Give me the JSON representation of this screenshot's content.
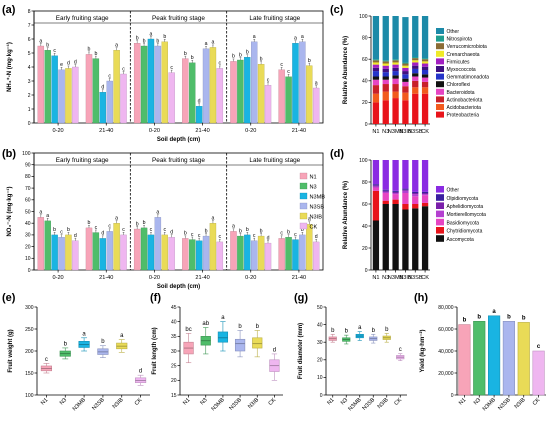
{
  "chart_data": [
    {
      "panel": "(a)",
      "type": "bar",
      "stages": [
        "Early fruiting stage",
        "Peak fruiting stage",
        "Late fruiting stage"
      ],
      "depths": [
        "0-20",
        "21-40"
      ],
      "xlabel": "Soil depth (cm)",
      "ylabel": "NH₄⁺-N (mg·kg⁻¹)",
      "ylim": [
        0,
        8
      ],
      "yticks": [
        "0",
        "1",
        "2",
        "3",
        "4",
        "5",
        "6",
        "7",
        "8"
      ],
      "series_names": [
        "N1",
        "N3",
        "N3MB",
        "N3SB",
        "N3IB",
        "CK"
      ],
      "groups": [
        {
          "values": [
            5.5,
            5.2,
            4.8,
            3.8,
            3.9,
            4.0
          ],
          "letters": [
            "a",
            "b",
            "c",
            "e",
            "d",
            "d"
          ]
        },
        {
          "values": [
            4.9,
            4.6,
            2.2,
            3.0,
            5.2,
            3.5
          ],
          "letters": [
            "b",
            "b",
            "d",
            "c",
            "a",
            "c"
          ]
        },
        {
          "values": [
            5.7,
            5.5,
            6.0,
            5.5,
            5.8,
            3.6
          ],
          "letters": [
            "b",
            "b",
            "a",
            "b",
            "b",
            "c"
          ]
        },
        {
          "values": [
            4.6,
            4.3,
            1.2,
            5.3,
            5.4,
            3.9
          ],
          "letters": [
            "b",
            "b",
            "d",
            "a",
            "a",
            "c"
          ]
        },
        {
          "values": [
            4.4,
            4.5,
            4.7,
            5.8,
            4.2,
            2.7
          ],
          "letters": [
            "b",
            "b",
            "b",
            "a",
            "b",
            "c"
          ]
        },
        {
          "values": [
            3.8,
            3.3,
            5.7,
            5.8,
            4.1,
            2.5
          ],
          "letters": [
            "c",
            "c",
            "a",
            "a",
            "b",
            "a"
          ]
        }
      ]
    },
    {
      "panel": "(b)",
      "type": "bar",
      "stages": [
        "Early fruiting stage",
        "Peak fruiting stage",
        "Late fruiting stage"
      ],
      "depths": [
        "0-20",
        "21-40"
      ],
      "xlabel": "Soil depth (cm)",
      "ylabel": "NO₃⁻-N (mg·kg⁻¹)",
      "ylim": [
        0,
        100
      ],
      "yticks": [
        "0",
        "10",
        "20",
        "30",
        "40",
        "50",
        "60",
        "70",
        "80",
        "90",
        "100"
      ],
      "legend": [
        "N1",
        "N3",
        "N3MB",
        "N3SB",
        "N3IB",
        "CK"
      ],
      "groups": [
        {
          "values": [
            45,
            42,
            30,
            28,
            30,
            25
          ],
          "letters": [
            "a",
            "a",
            "b",
            "c",
            "b",
            "d"
          ]
        },
        {
          "values": [
            36,
            32,
            27,
            33,
            40,
            30
          ],
          "letters": [
            "b",
            "c",
            "d",
            "c",
            "a",
            "c"
          ]
        },
        {
          "values": [
            35,
            36,
            30,
            45,
            30,
            28
          ],
          "letters": [
            "b",
            "b",
            "c",
            "a",
            "c",
            "d"
          ]
        },
        {
          "values": [
            27,
            26,
            25,
            29,
            40,
            24
          ],
          "letters": [
            "b",
            "c",
            "c",
            "b",
            "a",
            "c"
          ]
        },
        {
          "values": [
            33,
            29,
            30,
            25,
            29,
            23
          ],
          "letters": [
            "a",
            "b",
            "b",
            "c",
            "b",
            "d"
          ]
        },
        {
          "values": [
            27,
            28,
            26,
            30,
            39,
            24
          ],
          "letters": [
            "c",
            "b",
            "c",
            "b",
            "a",
            "d"
          ]
        }
      ]
    },
    {
      "panel": "(c)",
      "type": "bar",
      "stacked": true,
      "categories": [
        "N1",
        "N3",
        "N3MB",
        "N3IB",
        "N3SB",
        "CK"
      ],
      "ylabel": "Relative Abundance (%)",
      "ylim": [
        0,
        100
      ],
      "yticks": [
        "0",
        "20",
        "40",
        "60",
        "80",
        "100"
      ],
      "series": [
        {
          "name": "Proteobacteria",
          "color": "#e8141b",
          "values": [
            20,
            22,
            24,
            22,
            28,
            28
          ]
        },
        {
          "name": "Acidobacteriota",
          "color": "#f25a1d",
          "values": [
            8,
            8,
            6,
            7,
            6,
            6
          ]
        },
        {
          "name": "Actinobacteriota",
          "color": "#c8202a",
          "values": [
            8,
            7,
            7,
            6,
            6,
            5
          ]
        },
        {
          "name": "Bacteroidota",
          "color": "#e645c3",
          "values": [
            5,
            4,
            5,
            4,
            4,
            4
          ]
        },
        {
          "name": "Chloroflexi",
          "color": "#111111",
          "values": [
            3,
            3,
            3,
            3,
            3,
            3
          ]
        },
        {
          "name": "Gemmatimonadota",
          "color": "#2534c9",
          "values": [
            5,
            4,
            4,
            4,
            4,
            4
          ]
        },
        {
          "name": "Myxococcota",
          "color": "#3f1080",
          "values": [
            3,
            3,
            3,
            3,
            3,
            3
          ]
        },
        {
          "name": "Firmicutes",
          "color": "#a21fc2",
          "values": [
            3,
            3,
            3,
            3,
            3,
            3
          ]
        },
        {
          "name": "Crenarchaeota",
          "color": "#f0ea28",
          "values": [
            2,
            2,
            2,
            2,
            2,
            2
          ]
        },
        {
          "name": "Verrucomicrobiota",
          "color": "#8b6c35",
          "values": [
            2,
            2,
            2,
            2,
            2,
            2
          ]
        },
        {
          "name": "Nitrospirota",
          "color": "#1f9e8f",
          "values": [
            1,
            1,
            1,
            1,
            1,
            1
          ]
        },
        {
          "name": "Other",
          "color": "#1c8aa8",
          "values": [
            40,
            41,
            40,
            42,
            38,
            39
          ]
        }
      ]
    },
    {
      "panel": "(d)",
      "type": "bar",
      "stacked": true,
      "categories": [
        "N1",
        "N3",
        "N3MB",
        "N3IB",
        "N3SB",
        "CK"
      ],
      "ylabel": "Relative Abundance (%)",
      "ylim": [
        0,
        100
      ],
      "yticks": [
        "0",
        "20",
        "40",
        "60",
        "80",
        "100"
      ],
      "series": [
        {
          "name": "Ascomycota",
          "color": "#111111",
          "values": [
            45,
            60,
            60,
            55,
            56,
            58
          ]
        },
        {
          "name": "Chytridiomycota",
          "color": "#e8141b",
          "values": [
            27,
            3,
            4,
            5,
            4,
            3
          ]
        },
        {
          "name": "Basidiomycota",
          "color": "#e645c3",
          "values": [
            3,
            7,
            5,
            10,
            7,
            7
          ]
        },
        {
          "name": "Mortierellomycota",
          "color": "#b43fd0",
          "values": [
            1,
            1,
            1,
            2,
            2,
            1
          ]
        },
        {
          "name": "Aphelidiomycota",
          "color": "#7a1faa",
          "values": [
            1,
            1,
            1,
            1,
            1,
            1
          ]
        },
        {
          "name": "Olpidiomycota",
          "color": "#3a1fa0",
          "values": [
            1,
            1,
            1,
            1,
            1,
            1
          ]
        },
        {
          "name": "Other",
          "color": "#8a2be2",
          "values": [
            22,
            27,
            28,
            26,
            29,
            29
          ]
        }
      ]
    },
    {
      "panel": "(e)",
      "type": "box",
      "categories": [
        "N1",
        "N3",
        "N3MB",
        "N3SB",
        "N3IB",
        "CK"
      ],
      "ylabel": "Fruit weight (g)",
      "ylim": [
        100,
        300
      ],
      "yticks": [
        "100",
        "150",
        "200",
        "250",
        "300"
      ],
      "letters": [
        "c",
        "b",
        "a",
        "b",
        "a",
        "d"
      ],
      "boxes": [
        {
          "min": 150,
          "q1": 155,
          "median": 160,
          "q3": 166,
          "max": 172
        },
        {
          "min": 182,
          "q1": 188,
          "median": 194,
          "q3": 200,
          "max": 207
        },
        {
          "min": 200,
          "q1": 208,
          "median": 215,
          "q3": 222,
          "max": 230
        },
        {
          "min": 185,
          "q1": 192,
          "median": 198,
          "q3": 205,
          "max": 212
        },
        {
          "min": 197,
          "q1": 205,
          "median": 211,
          "q3": 218,
          "max": 226
        },
        {
          "min": 122,
          "q1": 128,
          "median": 133,
          "q3": 139,
          "max": 145
        }
      ]
    },
    {
      "panel": "(f)",
      "type": "box",
      "categories": [
        "N1",
        "N3",
        "N3MB",
        "N3SB",
        "N3IB",
        "CK"
      ],
      "ylabel": "Fruit length (cm)",
      "ylim": [
        15,
        45
      ],
      "yticks": [
        "15",
        "20",
        "25",
        "30",
        "35",
        "40",
        "45"
      ],
      "letters": [
        "bc",
        "ab",
        "a",
        "b",
        "b",
        "d"
      ],
      "boxes": [
        {
          "min": 26,
          "q1": 29,
          "median": 31,
          "q3": 33,
          "max": 36
        },
        {
          "min": 29,
          "q1": 32,
          "median": 33.5,
          "q3": 35,
          "max": 38
        },
        {
          "min": 30,
          "q1": 33,
          "median": 34.5,
          "q3": 36.5,
          "max": 40
        },
        {
          "min": 28,
          "q1": 30,
          "median": 32.5,
          "q3": 34,
          "max": 37
        },
        {
          "min": 28,
          "q1": 31,
          "median": 32.5,
          "q3": 34.5,
          "max": 37
        },
        {
          "min": 20,
          "q1": 23,
          "median": 25,
          "q3": 27,
          "max": 29
        }
      ]
    },
    {
      "panel": "(g)",
      "type": "box",
      "categories": [
        "N1",
        "N3",
        "N3MB",
        "N3SB",
        "N3IB",
        "CK"
      ],
      "ylabel": "Fruit diameter (mm)",
      "ylim": [
        0,
        50
      ],
      "yticks": [
        "0",
        "10",
        "20",
        "30",
        "40",
        "50"
      ],
      "letters": [
        "b",
        "b",
        "a",
        "b",
        "b",
        "c"
      ],
      "boxes": [
        {
          "min": 30,
          "q1": 31,
          "median": 32,
          "q3": 33,
          "max": 34.5
        },
        {
          "min": 29,
          "q1": 30.5,
          "median": 31.5,
          "q3": 32.5,
          "max": 34
        },
        {
          "min": 31,
          "q1": 32.5,
          "median": 33.5,
          "q3": 34.5,
          "max": 36
        },
        {
          "min": 29.5,
          "q1": 31,
          "median": 32,
          "q3": 33,
          "max": 34.5
        },
        {
          "min": 30,
          "q1": 31.5,
          "median": 32.5,
          "q3": 33.5,
          "max": 35
        },
        {
          "min": 19.5,
          "q1": 20.5,
          "median": 21.5,
          "q3": 22.5,
          "max": 23.5
        }
      ]
    },
    {
      "panel": "(h)",
      "type": "bar",
      "categories": [
        "N1",
        "N3",
        "N3MB",
        "N3SB",
        "N3IB",
        "CK"
      ],
      "ylabel": "Yield (kg·hm⁻²)",
      "ylim": [
        0,
        80000
      ],
      "yticks": [
        "0",
        "20,000",
        "40,000",
        "60,000",
        "80,000"
      ],
      "values": [
        64000,
        67000,
        72000,
        67000,
        66000,
        40000
      ],
      "letters": [
        "b",
        "b",
        "a",
        "b",
        "b",
        "c"
      ]
    }
  ],
  "colors": {
    "N1": "#f7a4b8",
    "N3": "#4fbd6a",
    "N3MB": "#19b4e2",
    "N3SB": "#aab6ee",
    "N3IB": "#e9db57",
    "CK": "#efb6f0"
  }
}
